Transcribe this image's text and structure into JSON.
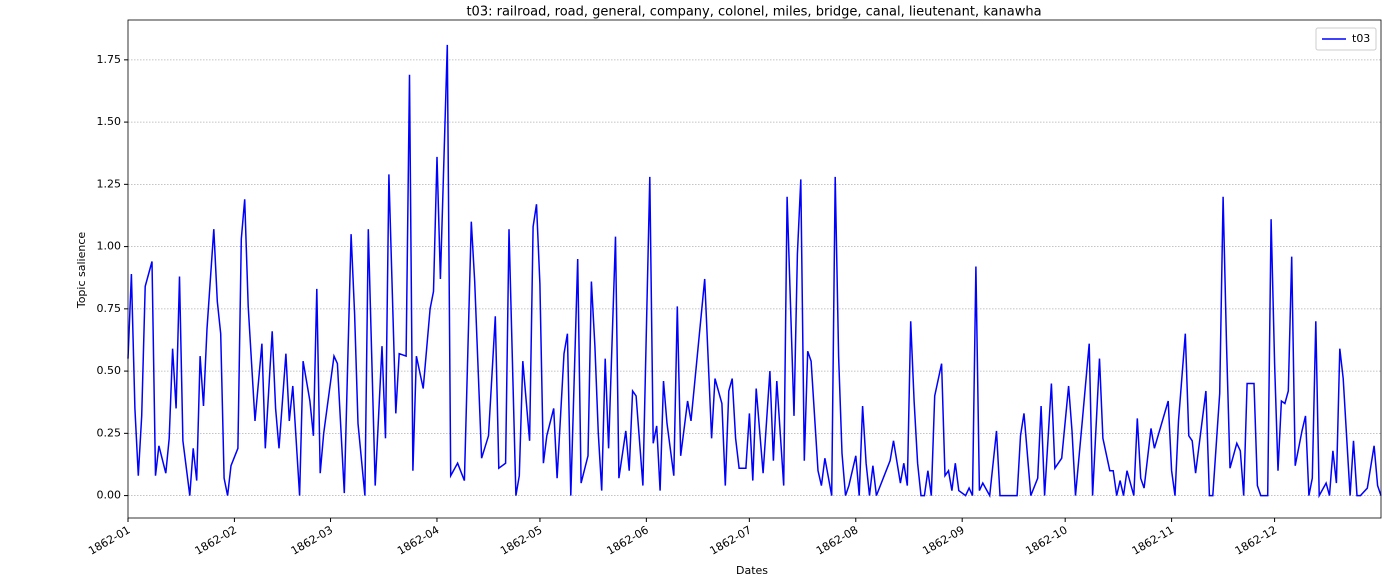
{
  "chart_data": {
    "type": "line",
    "title": "t03: railroad, road, general, company, colonel, miles, bridge, canal, lieutenant, kanawha",
    "x_label": "Dates",
    "y_label": "Topic salience",
    "x": [
      0,
      1,
      2,
      3,
      4,
      5,
      7,
      8,
      9,
      11,
      12,
      13,
      14,
      15,
      16,
      18,
      19,
      20,
      21,
      22,
      23,
      25,
      26,
      27,
      28,
      29,
      30,
      32,
      33,
      34,
      35,
      37,
      39,
      40,
      42,
      43,
      44,
      46,
      47,
      48,
      50,
      51,
      53,
      54,
      55,
      56,
      57,
      60,
      61,
      63,
      65,
      66,
      67,
      69,
      70,
      72,
      74,
      75,
      76,
      78,
      79,
      81,
      82,
      83,
      84,
      86,
      88,
      89,
      90,
      91,
      93,
      94,
      96,
      98,
      100,
      101,
      103,
      105,
      107,
      108,
      110,
      111,
      113,
      114,
      115,
      117,
      118,
      119,
      120,
      121,
      122,
      124,
      125,
      127,
      128,
      129,
      131,
      132,
      134,
      135,
      136,
      137,
      138,
      139,
      140,
      142,
      143,
      145,
      146,
      147,
      148,
      150,
      152,
      153,
      154,
      155,
      156,
      157,
      159,
      160,
      161,
      163,
      164,
      168,
      170,
      171,
      173,
      174,
      175,
      176,
      177,
      178,
      180,
      181,
      182,
      183,
      185,
      187,
      188,
      189,
      191,
      192,
      194,
      195,
      196,
      197,
      198,
      199,
      201,
      202,
      203,
      205,
      206,
      207,
      208,
      209,
      210,
      212,
      213,
      214,
      215,
      216,
      217,
      218,
      222,
      223,
      225,
      226,
      227,
      228,
      229,
      230,
      231,
      232,
      233,
      234,
      235,
      237,
      238,
      239,
      240,
      241,
      242,
      244,
      245,
      246,
      247,
      248,
      249,
      251,
      253,
      254,
      259,
      260,
      261,
      263,
      265,
      266,
      267,
      269,
      270,
      272,
      274,
      275,
      276,
      278,
      280,
      281,
      283,
      284,
      286,
      287,
      288,
      289,
      290,
      291,
      293,
      294,
      295,
      296,
      298,
      299,
      303,
      304,
      305,
      306,
      308,
      309,
      310,
      311,
      314,
      315,
      316,
      318,
      319,
      320,
      321,
      323,
      324,
      325,
      326,
      328,
      329,
      330,
      332,
      333,
      334,
      335,
      336,
      337,
      338,
      339,
      340,
      342,
      343,
      344,
      345,
      346,
      347,
      349,
      350,
      351,
      352,
      353,
      354,
      356,
      357,
      358,
      359,
      361,
      363,
      364,
      365
    ],
    "series": [
      {
        "name": "t03",
        "color": "#0000ff",
        "values": [
          0.55,
          0.89,
          0.35,
          0.08,
          0.32,
          0.84,
          0.94,
          0.08,
          0.2,
          0.09,
          0.23,
          0.59,
          0.35,
          0.88,
          0.22,
          0.0,
          0.19,
          0.06,
          0.56,
          0.36,
          0.67,
          1.07,
          0.78,
          0.65,
          0.07,
          0.0,
          0.12,
          0.19,
          1.03,
          1.19,
          0.76,
          0.3,
          0.61,
          0.19,
          0.66,
          0.35,
          0.19,
          0.57,
          0.3,
          0.44,
          0.0,
          0.54,
          0.38,
          0.24,
          0.83,
          0.09,
          0.25,
          0.56,
          0.53,
          0.01,
          1.05,
          0.73,
          0.29,
          0.0,
          1.07,
          0.04,
          0.6,
          0.23,
          1.29,
          0.33,
          0.57,
          0.56,
          1.69,
          0.1,
          0.56,
          0.43,
          0.75,
          0.82,
          1.36,
          0.87,
          1.81,
          0.08,
          0.13,
          0.06,
          1.1,
          0.86,
          0.15,
          0.24,
          0.72,
          0.11,
          0.13,
          1.07,
          0.0,
          0.08,
          0.54,
          0.22,
          1.08,
          1.17,
          0.85,
          0.13,
          0.24,
          0.35,
          0.07,
          0.57,
          0.65,
          0.0,
          0.95,
          0.05,
          0.16,
          0.86,
          0.6,
          0.25,
          0.02,
          0.55,
          0.19,
          1.04,
          0.07,
          0.26,
          0.1,
          0.42,
          0.4,
          0.04,
          1.28,
          0.21,
          0.28,
          0.02,
          0.46,
          0.29,
          0.08,
          0.76,
          0.16,
          0.38,
          0.3,
          0.87,
          0.23,
          0.47,
          0.37,
          0.04,
          0.42,
          0.47,
          0.23,
          0.11,
          0.11,
          0.33,
          0.06,
          0.43,
          0.09,
          0.5,
          0.14,
          0.46,
          0.04,
          1.2,
          0.32,
          0.97,
          1.27,
          0.14,
          0.58,
          0.54,
          0.1,
          0.04,
          0.15,
          0.0,
          1.28,
          0.56,
          0.17,
          0.0,
          0.04,
          0.16,
          0.0,
          0.36,
          0.13,
          0.0,
          0.12,
          0.0,
          0.14,
          0.22,
          0.05,
          0.13,
          0.04,
          0.7,
          0.38,
          0.13,
          0.0,
          0.0,
          0.1,
          0.0,
          0.4,
          0.53,
          0.08,
          0.1,
          0.02,
          0.13,
          0.02,
          0.0,
          0.03,
          0.0,
          0.92,
          0.02,
          0.05,
          0.0,
          0.26,
          0.0,
          0.0,
          0.24,
          0.33,
          0.0,
          0.07,
          0.36,
          0.0,
          0.45,
          0.11,
          0.15,
          0.44,
          0.26,
          0.0,
          0.3,
          0.61,
          0.0,
          0.55,
          0.23,
          0.1,
          0.1,
          0.0,
          0.06,
          0.0,
          0.1,
          0.0,
          0.31,
          0.07,
          0.03,
          0.27,
          0.19,
          0.38,
          0.1,
          0.0,
          0.3,
          0.65,
          0.24,
          0.22,
          0.09,
          0.42,
          0.0,
          0.0,
          0.41,
          1.2,
          0.61,
          0.11,
          0.21,
          0.18,
          0.0,
          0.45,
          0.45,
          0.04,
          0.0,
          0.0,
          1.11,
          0.53,
          0.1,
          0.38,
          0.37,
          0.42,
          0.96,
          0.12,
          0.26,
          0.32,
          0.0,
          0.07,
          0.7,
          0.0,
          0.05,
          0.0,
          0.18,
          0.05,
          0.59,
          0.47,
          0.0,
          0.22,
          0.0,
          0.0,
          0.03,
          0.2,
          0.04,
          0.0
        ]
      }
    ],
    "xlim": [
      0,
      365
    ],
    "xticks": [
      {
        "value": 0,
        "label": "1862-01"
      },
      {
        "value": 31,
        "label": "1862-02"
      },
      {
        "value": 59,
        "label": "1862-03"
      },
      {
        "value": 90,
        "label": "1862-04"
      },
      {
        "value": 120,
        "label": "1862-05"
      },
      {
        "value": 151,
        "label": "1862-06"
      },
      {
        "value": 181,
        "label": "1862-07"
      },
      {
        "value": 212,
        "label": "1862-08"
      },
      {
        "value": 243,
        "label": "1862-09"
      },
      {
        "value": 273,
        "label": "1862-10"
      },
      {
        "value": 304,
        "label": "1862-11"
      },
      {
        "value": 334,
        "label": "1862-12"
      }
    ],
    "ylim": [
      -0.09,
      1.91
    ],
    "yticks": [
      {
        "value": 0,
        "label": "0.00"
      },
      {
        "value": 0.25,
        "label": "0.25"
      },
      {
        "value": 0.5,
        "label": "0.50"
      },
      {
        "value": 0.75,
        "label": "0.75"
      },
      {
        "value": 1,
        "label": "1.00"
      },
      {
        "value": 1.25,
        "label": "1.25"
      },
      {
        "value": 1.5,
        "label": "1.50"
      },
      {
        "value": 1.75,
        "label": "1.75"
      }
    ],
    "grid": true,
    "legend": "upper right"
  }
}
